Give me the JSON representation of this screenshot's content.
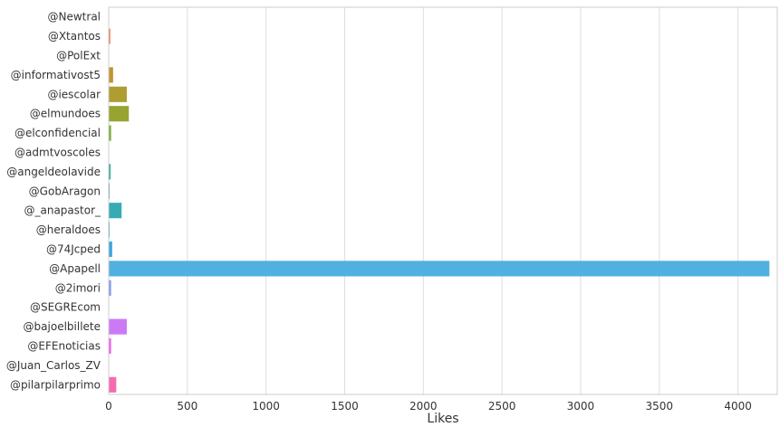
{
  "chart_data": {
    "type": "bar",
    "orientation": "horizontal",
    "categories": [
      "@Newtral",
      "@Xtantos",
      "@PolExt",
      "@informativost5",
      "@iescolar",
      "@elmundoes",
      "@elconfidencial",
      "@admtvoscoles",
      "@angeldeolavide",
      "@GobAragon",
      "@_anapastor_",
      "@heraldoes",
      "@74Jcped",
      "@Apapell",
      "@2imori",
      "@SEGREcom",
      "@bajoelbillete",
      "@EFEnoticias",
      "@Juan_Carlos_ZV",
      "@pilarpilarprimo"
    ],
    "values": [
      0,
      10,
      3,
      28,
      115,
      128,
      15,
      2,
      12,
      6,
      82,
      6,
      22,
      4200,
      15,
      1,
      115,
      15,
      2,
      48
    ],
    "colors": [
      "#f77189",
      "#f7754f",
      "#dc8932",
      "#c39532",
      "#ae9d31",
      "#97a431",
      "#77ab31",
      "#33b07a",
      "#35ad9c",
      "#36ada4",
      "#37abb4",
      "#38a9c5",
      "#3aa5df",
      "#50b1e0",
      "#8197f4",
      "#a48cf4",
      "#cc7af4",
      "#f45cf2",
      "#f565cc",
      "#f66bad"
    ],
    "title": "",
    "xlabel": "Likes",
    "ylabel": "",
    "xlim": [
      0,
      4250
    ],
    "xticks": [
      0,
      500,
      1000,
      1500,
      2000,
      2500,
      3000,
      3500,
      4000
    ],
    "xtick_labels": [
      "0",
      "500",
      "1000",
      "1500",
      "2000",
      "2500",
      "3000",
      "3500",
      "4000"
    ],
    "grid": "vertical"
  }
}
